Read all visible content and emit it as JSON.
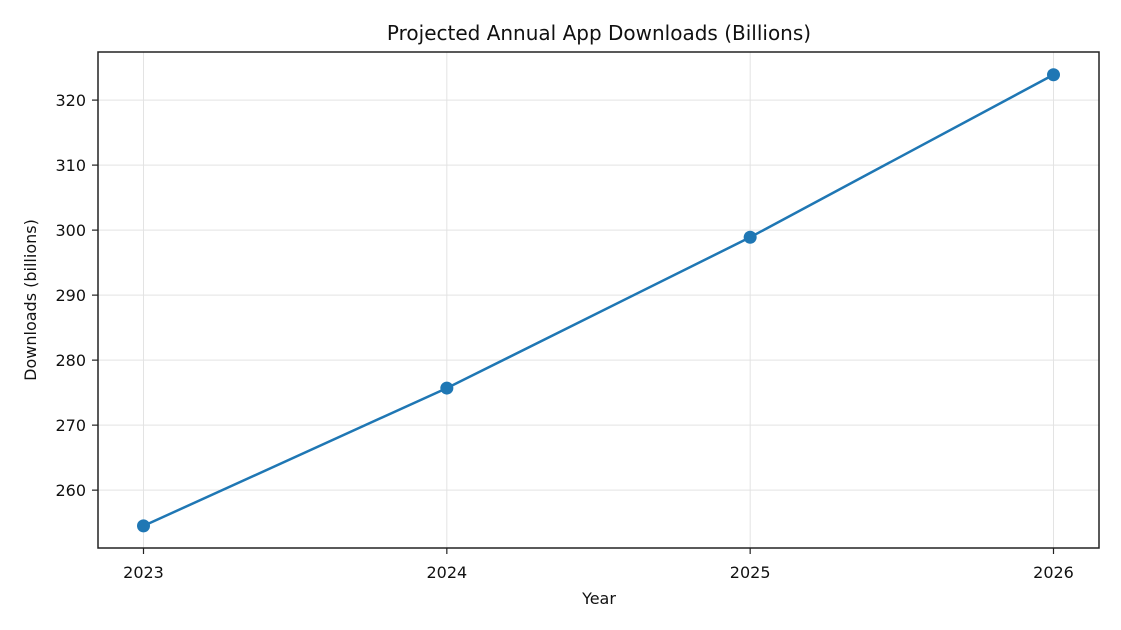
{
  "chart_data": {
    "type": "line",
    "title": "Projected Annual App Downloads (Billions)",
    "xlabel": "Year",
    "ylabel": "Downloads (billions)",
    "categories": [
      "2023",
      "2024",
      "2025",
      "2026"
    ],
    "x": [
      2023,
      2024,
      2025,
      2026
    ],
    "series": [
      {
        "name": "Downloads",
        "values": [
          254.5,
          275.7,
          298.9,
          323.9
        ],
        "color": "#1f77b4",
        "marker": "circle"
      }
    ],
    "yticks": [
      260,
      270,
      280,
      290,
      300,
      310,
      320
    ],
    "ylim": [
      251.1,
      327.4
    ],
    "xlim": [
      2022.85,
      2026.15
    ],
    "grid": true,
    "legend": null
  }
}
